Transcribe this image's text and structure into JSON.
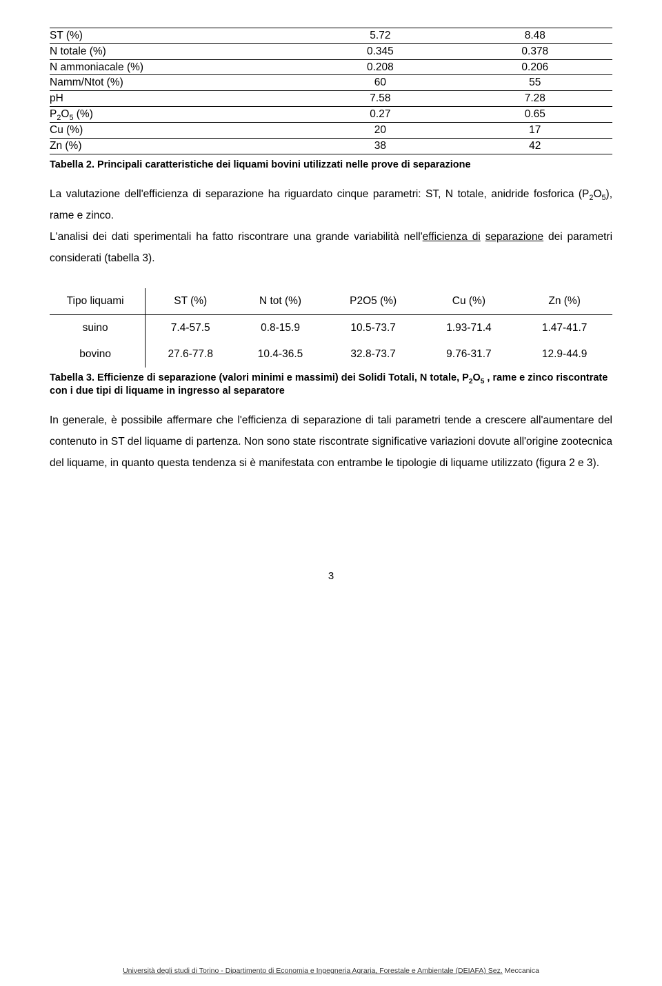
{
  "table2": {
    "rows": [
      {
        "param": "ST (%)",
        "c1": "5.72",
        "c2": "8.48"
      },
      {
        "param": "N totale (%)",
        "c1": "0.345",
        "c2": "0.378"
      },
      {
        "param": "N ammoniacale (%)",
        "c1": "0.208",
        "c2": "0.206"
      },
      {
        "param": "Namm/Ntot (%)",
        "c1": "60",
        "c2": "55"
      },
      {
        "param": "pH",
        "c1": "7.58",
        "c2": "7.28"
      },
      {
        "param_html": "P<span class=\"sub\">2</span>O<span class=\"sub\">5</span> (%)",
        "c1": "0.27",
        "c2": "0.65"
      },
      {
        "param": "Cu (%)",
        "c1": "20",
        "c2": "17"
      },
      {
        "param": "Zn (%)",
        "c1": "38",
        "c2": "42"
      }
    ],
    "caption": "Tabella 2. Principali caratteristiche dei liquami bovini utilizzati nelle prove di separazione"
  },
  "para1": {
    "pre": "La valutazione dell'efficienza di separazione ha riguardato cinque parametri: ST, N totale, anidride fosforica (P",
    "sub1": "2",
    "mid1": "O",
    "sub2": "5",
    "post1": "), rame e zinco.",
    "line2a": "L'analisi dei dati sperimentali ha fatto riscontrare una grande variabilità nell'",
    "eff": "efficienza di",
    "sep": "separazione",
    "line2b": " dei parametri considerati (tabella 3)."
  },
  "table3": {
    "headers": [
      "Tipo liquami",
      "ST (%)",
      "N tot (%)",
      "P2O5 (%)",
      "Cu (%)",
      "Zn (%)"
    ],
    "rows": [
      [
        "suino",
        "7.4-57.5",
        "0.8-15.9",
        "10.5-73.7",
        "1.93-71.4",
        "1.47-41.7"
      ],
      [
        "bovino",
        "27.6-77.8",
        "10.4-36.5",
        "32.8-73.7",
        "9.76-31.7",
        "12.9-44.9"
      ]
    ],
    "caption_pre": "Tabella 3. Efficienze di separazione (valori minimi e massimi) dei Solidi Totali, N totale, P",
    "sub1": "2",
    "capmid": "O",
    "sub2": "5",
    "caption_post": " , rame e zinco riscontrate con i due tipi di liquame in ingresso al separatore"
  },
  "para2": "In generale, è possibile affermare che l'efficienza di separazione di tali parametri tende a crescere all'aumentare del contenuto in ST del liquame di partenza. Non sono state riscontrate significative variazioni dovute all'origine zootecnica del liquame, in quanto questa tendenza si è manifestata con entrambe le tipologie di liquame utilizzato (figura 2 e 3).",
  "pagenum": "3",
  "footer": {
    "pre": "Università degli studi di Torino - Dipartimento di Economia e Ingegneria Agraria, Forestale e Ambientale (DEIAFA) Sez.",
    "last": " Meccanica"
  }
}
